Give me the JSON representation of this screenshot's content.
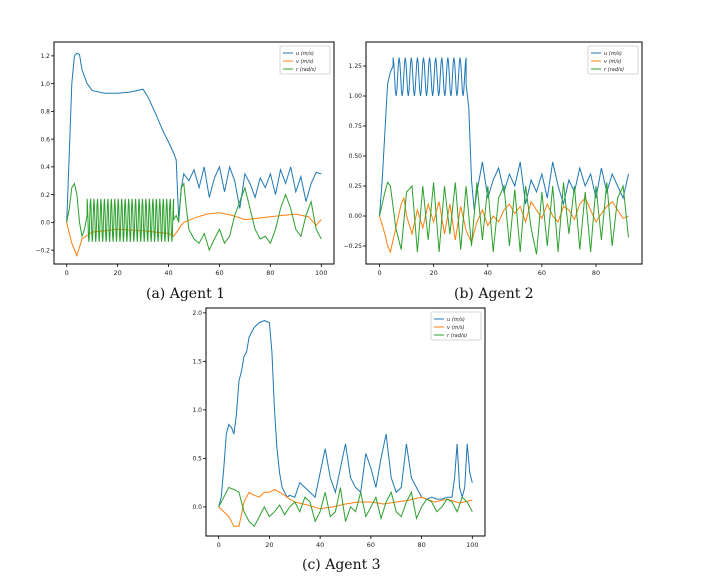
{
  "colors": {
    "u": "#1f77b4",
    "v": "#ff7f0e",
    "r": "#2ca02c",
    "axis": "#000000",
    "legend_border": "#cccccc"
  },
  "captions": [
    "(a) Agent 1",
    "(b) Agent 2",
    "(c) Agent 3"
  ],
  "chart_data": [
    {
      "type": "line",
      "title": "(a) Agent 1",
      "xlim": [
        -5,
        105
      ],
      "ylim": [
        -0.3,
        1.3
      ],
      "xticks": [
        0,
        20,
        40,
        60,
        80,
        100
      ],
      "yticks": [
        -0.2,
        0.0,
        0.2,
        0.4,
        0.6,
        0.8,
        1.0,
        1.2
      ],
      "ytick_labels": [
        "−0.2",
        "0.0",
        "0.2",
        "0.4",
        "0.6",
        "0.8",
        "1.0",
        "1.2"
      ],
      "legend": [
        "u (m/s)",
        "v (m/s)",
        "r (rad/s)"
      ],
      "series": [
        {
          "name": "u (m/s)",
          "x": [
            0,
            1,
            2,
            3,
            4,
            5,
            6,
            8,
            10,
            15,
            20,
            25,
            30,
            32,
            35,
            38,
            40,
            42,
            43,
            44,
            45,
            46,
            48,
            50,
            52,
            54,
            56,
            58,
            60,
            62,
            64,
            66,
            68,
            70,
            72,
            74,
            76,
            78,
            80,
            82,
            84,
            86,
            88,
            90,
            92,
            94,
            96,
            98,
            100
          ],
          "y": [
            0,
            0.5,
            1.0,
            1.2,
            1.22,
            1.21,
            1.1,
            1.0,
            0.95,
            0.93,
            0.93,
            0.94,
            0.96,
            0.9,
            0.78,
            0.65,
            0.58,
            0.5,
            0.45,
            0.02,
            0.25,
            0.35,
            0.3,
            0.38,
            0.25,
            0.4,
            0.18,
            0.32,
            0.4,
            0.22,
            0.4,
            0.3,
            0.1,
            0.35,
            0.28,
            0.18,
            0.32,
            0.25,
            0.35,
            0.2,
            0.38,
            0.28,
            0.4,
            0.22,
            0.33,
            0.15,
            0.28,
            0.36,
            0.35
          ]
        },
        {
          "name": "v (m/s)",
          "x": [
            0,
            2,
            4,
            6,
            10,
            20,
            30,
            40,
            42,
            44,
            45,
            46,
            50,
            55,
            60,
            65,
            70,
            75,
            80,
            85,
            90,
            95,
            98,
            100
          ],
          "y": [
            0,
            -0.15,
            -0.24,
            -0.12,
            -0.07,
            -0.05,
            -0.06,
            -0.08,
            -0.1,
            -0.05,
            -0.02,
            0.0,
            0.03,
            0.06,
            0.07,
            0.05,
            0.02,
            0.03,
            0.04,
            0.05,
            0.06,
            0.04,
            -0.02,
            0.02
          ]
        },
        {
          "name": "r (rad/s)",
          "x": [
            0,
            1,
            2,
            3,
            4,
            5,
            6,
            7,
            8,
            42,
            43,
            44,
            45,
            46,
            47,
            48,
            50,
            52,
            54,
            56,
            58,
            60,
            62,
            64,
            66,
            68,
            70,
            72,
            74,
            76,
            78,
            80,
            82,
            84,
            86,
            88,
            90,
            92,
            94,
            96,
            98,
            100
          ],
          "y": [
            0,
            0.1,
            0.25,
            0.28,
            0.2,
            0.0,
            -0.1,
            -0.05,
            0.05,
            0.02,
            0.05,
            0.0,
            0.25,
            0.28,
            0.1,
            -0.05,
            -0.12,
            -0.15,
            -0.08,
            -0.2,
            -0.12,
            -0.05,
            -0.15,
            -0.1,
            0.05,
            0.15,
            0.25,
            0.1,
            -0.05,
            -0.12,
            -0.1,
            -0.15,
            -0.05,
            0.1,
            0.2,
            0.1,
            -0.05,
            -0.1,
            0.05,
            0.15,
            -0.05,
            -0.12
          ]
        }
      ],
      "oscillation": {
        "series": "r (rad/s)",
        "x_from": 8,
        "x_to": 42,
        "cycles": 25,
        "high": 0.17,
        "low": -0.14
      }
    },
    {
      "type": "line",
      "title": "(b) Agent 2",
      "xlim": [
        -5,
        97
      ],
      "ylim": [
        -0.4,
        1.45
      ],
      "xticks": [
        0,
        20,
        40,
        60,
        80
      ],
      "yticks": [
        -0.25,
        0.0,
        0.25,
        0.5,
        0.75,
        1.0,
        1.25
      ],
      "ytick_labels": [
        "−0.25",
        "0.00",
        "0.25",
        "0.50",
        "0.75",
        "1.00",
        "1.25"
      ],
      "legend": [
        "u (m/s)",
        "v (m/s)",
        "r (rad/s)"
      ],
      "series": [
        {
          "name": "u (m/s)",
          "x": [
            0,
            1,
            2,
            3,
            4,
            5,
            32,
            33,
            34,
            35,
            36,
            38,
            40,
            42,
            44,
            46,
            48,
            50,
            52,
            54,
            56,
            58,
            60,
            62,
            64,
            66,
            68,
            70,
            72,
            74,
            76,
            78,
            80,
            82,
            84,
            86,
            88,
            90,
            92
          ],
          "y": [
            0,
            0.3,
            0.7,
            1.1,
            1.2,
            1.25,
            1.1,
            0.9,
            0.3,
            0.05,
            0.2,
            0.45,
            0.15,
            0.3,
            0.4,
            0.2,
            0.35,
            0.25,
            0.45,
            0.1,
            0.3,
            0.2,
            0.35,
            0.15,
            0.45,
            0.25,
            0.1,
            0.3,
            0.2,
            0.4,
            0.25,
            0.35,
            0.15,
            0.4,
            0.2,
            0.35,
            0.25,
            0.15,
            0.35
          ]
        },
        {
          "name": "v (m/s)",
          "x": [
            0,
            2,
            3,
            4,
            5,
            6,
            7,
            8,
            9,
            10,
            12,
            14,
            16,
            18,
            20,
            22,
            24,
            26,
            28,
            30,
            32,
            34,
            36,
            38,
            40,
            42,
            44,
            46,
            48,
            50,
            52,
            54,
            56,
            58,
            60,
            62,
            64,
            66,
            68,
            70,
            72,
            74,
            76,
            78,
            80,
            82,
            84,
            86,
            88,
            90,
            92
          ],
          "y": [
            0,
            -0.15,
            -0.25,
            -0.3,
            -0.2,
            -0.1,
            0.0,
            0.1,
            0.15,
            0.0,
            -0.15,
            0.05,
            -0.1,
            0.1,
            -0.05,
            0.12,
            -0.15,
            0.1,
            -0.2,
            0.08,
            -0.12,
            -0.22,
            -0.05,
            0.05,
            -0.08,
            0.0,
            -0.05,
            0.05,
            0.1,
            0.02,
            0.08,
            -0.05,
            0.12,
            0.05,
            -0.02,
            0.1,
            0.0,
            -0.05,
            0.08,
            0.05,
            -0.03,
            0.1,
            0.15,
            0.05,
            -0.05,
            0.02,
            0.08,
            0.12,
            0.05,
            -0.02,
            0.0
          ]
        },
        {
          "name": "r (rad/s)",
          "x": [
            0,
            2,
            3,
            4,
            6,
            8,
            10,
            12,
            14,
            16,
            18,
            20,
            22,
            24,
            26,
            28,
            30,
            32,
            34,
            36,
            38,
            40,
            42,
            44,
            46,
            48,
            50,
            52,
            54,
            56,
            58,
            60,
            62,
            64,
            66,
            68,
            70,
            72,
            74,
            76,
            78,
            80,
            82,
            84,
            86,
            88,
            90,
            92
          ],
          "y": [
            0,
            0.2,
            0.28,
            0.25,
            -0.1,
            -0.28,
            0.2,
            0.25,
            -0.3,
            0.25,
            -0.2,
            0.28,
            -0.3,
            0.25,
            -0.15,
            0.28,
            -0.28,
            0.25,
            -0.25,
            0.28,
            -0.2,
            0.25,
            -0.3,
            0.15,
            0.25,
            -0.25,
            0.22,
            -0.3,
            0.25,
            -0.1,
            -0.32,
            0.2,
            -0.25,
            0.25,
            -0.3,
            0.28,
            -0.15,
            0.25,
            -0.28,
            0.2,
            -0.3,
            0.25,
            -0.2,
            0.28,
            -0.25,
            0.15,
            0.25,
            -0.18
          ]
        }
      ],
      "oscillation": {
        "series": "u (m/s)",
        "x_from": 5,
        "x_to": 32,
        "cycles": 12,
        "high": 1.32,
        "low": 1.0
      }
    },
    {
      "type": "line",
      "title": "(c) Agent 3",
      "xlim": [
        -5,
        105
      ],
      "ylim": [
        -0.3,
        2.05
      ],
      "xticks": [
        0,
        20,
        40,
        60,
        80,
        100
      ],
      "yticks": [
        0.0,
        0.5,
        1.0,
        1.5,
        2.0
      ],
      "ytick_labels": [
        "0.0",
        "0.5",
        "1.0",
        "1.5",
        "2.0"
      ],
      "legend": [
        "u (m/s)",
        "v (m/s)",
        "r (rad/s)"
      ],
      "series": [
        {
          "name": "u (m/s)",
          "x": [
            0,
            1,
            2,
            3,
            4,
            5,
            6,
            7,
            8,
            9,
            10,
            11,
            12,
            14,
            16,
            18,
            20,
            21,
            22,
            23,
            24,
            25,
            26,
            27,
            28,
            30,
            32,
            34,
            36,
            38,
            40,
            42,
            44,
            46,
            48,
            50,
            52,
            54,
            56,
            58,
            60,
            62,
            64,
            66,
            68,
            70,
            72,
            74,
            76,
            78,
            80,
            82,
            84,
            86,
            88,
            90,
            92,
            93,
            94,
            95,
            96,
            97,
            98,
            99,
            100
          ],
          "y": [
            0,
            0.1,
            0.4,
            0.75,
            0.85,
            0.82,
            0.75,
            0.95,
            1.3,
            1.4,
            1.55,
            1.6,
            1.75,
            1.85,
            1.9,
            1.92,
            1.9,
            1.6,
            1.0,
            0.6,
            0.35,
            0.2,
            0.15,
            0.1,
            0.12,
            0.1,
            0.25,
            0.2,
            0.15,
            0.1,
            0.35,
            0.6,
            0.3,
            0.15,
            0.4,
            0.65,
            0.3,
            0.2,
            0.15,
            0.55,
            0.4,
            0.2,
            0.5,
            0.75,
            0.3,
            0.15,
            0.2,
            0.65,
            0.3,
            0.2,
            0.1,
            0.08,
            0.1,
            0.08,
            0.08,
            0.1,
            0.1,
            0.3,
            0.65,
            0.2,
            0.1,
            0.2,
            0.65,
            0.35,
            0.25
          ]
        },
        {
          "name": "v (m/s)",
          "x": [
            0,
            2,
            4,
            6,
            8,
            10,
            12,
            14,
            16,
            18,
            20,
            22,
            24,
            26,
            28,
            30,
            35,
            40,
            45,
            50,
            55,
            60,
            65,
            70,
            75,
            80,
            85,
            90,
            95,
            100
          ],
          "y": [
            0,
            -0.05,
            -0.1,
            -0.2,
            -0.2,
            0.05,
            0.15,
            0.12,
            0.1,
            0.15,
            0.15,
            0.18,
            0.15,
            0.12,
            0.08,
            0.05,
            0.02,
            -0.02,
            0.0,
            0.03,
            0.05,
            0.05,
            0.03,
            0.05,
            0.07,
            0.1,
            0.05,
            0.08,
            0.04,
            0.07
          ]
        },
        {
          "name": "r (rad/s)",
          "x": [
            0,
            2,
            4,
            6,
            8,
            10,
            12,
            14,
            16,
            18,
            20,
            22,
            24,
            26,
            28,
            30,
            32,
            34,
            36,
            38,
            40,
            42,
            44,
            46,
            48,
            50,
            52,
            54,
            56,
            58,
            60,
            62,
            64,
            66,
            68,
            70,
            72,
            74,
            76,
            78,
            80,
            82,
            84,
            86,
            88,
            90,
            92,
            94,
            96,
            98,
            100
          ],
          "y": [
            0,
            0.1,
            0.2,
            0.18,
            0.15,
            -0.05,
            -0.15,
            -0.2,
            -0.1,
            0.0,
            -0.1,
            -0.05,
            0.02,
            -0.08,
            0.0,
            0.05,
            -0.05,
            0.1,
            0.05,
            -0.15,
            -0.05,
            0.15,
            -0.1,
            -0.05,
            0.2,
            -0.15,
            0.0,
            -0.05,
            0.15,
            -0.1,
            0.0,
            0.1,
            -0.12,
            0.05,
            0.15,
            -0.05,
            -0.1,
            0.05,
            0.15,
            -0.12,
            0.0,
            0.08,
            0.05,
            -0.05,
            0.0,
            0.08,
            0.05,
            -0.05,
            0.1,
            0.05,
            -0.05
          ]
        }
      ]
    }
  ]
}
